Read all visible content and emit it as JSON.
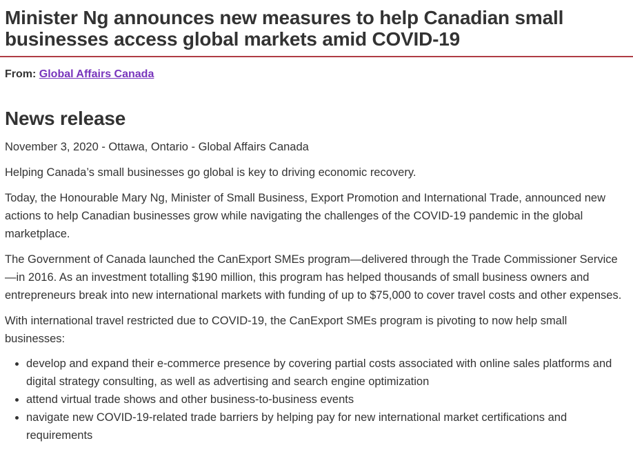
{
  "colors": {
    "title_rule": "#af3c43",
    "visited_link": "#7834bc",
    "text": "#333333"
  },
  "header": {
    "title": "Minister Ng announces new measures to help Canadian small businesses access global markets amid COVID-19",
    "from_label": "From:",
    "from_link": "Global Affairs Canada"
  },
  "main": {
    "section_heading": "News release",
    "dateline": "November 3, 2020 - Ottawa, Ontario - Global Affairs Canada",
    "paragraphs": [
      "Helping Canada’s small businesses go global is key to driving economic recovery.",
      "Today, the Honourable Mary Ng, Minister of Small Business, Export Promotion and International Trade, announced new actions to help Canadian businesses grow while navigating the challenges of the COVID-19 pandemic in the global marketplace.",
      "The Government of Canada launched the CanExport SMEs program—delivered through the Trade Commissioner Service—in 2016. As an investment totalling $190 million, this program has helped thousands of small business owners and entrepreneurs break into new international markets with funding of up to $75,000 to cover travel costs and other expenses.",
      "With international travel restricted due to COVID-19, the CanExport SMEs program is pivoting to now help small businesses:"
    ],
    "bullets": [
      "develop and expand their e-commerce presence by covering partial costs associated with online sales platforms and digital strategy consulting, as well as advertising and search engine optimization",
      "attend virtual trade shows and other business-to-business events",
      "navigate new COVID-19-related trade barriers by helping pay for new international market certifications and requirements"
    ]
  }
}
